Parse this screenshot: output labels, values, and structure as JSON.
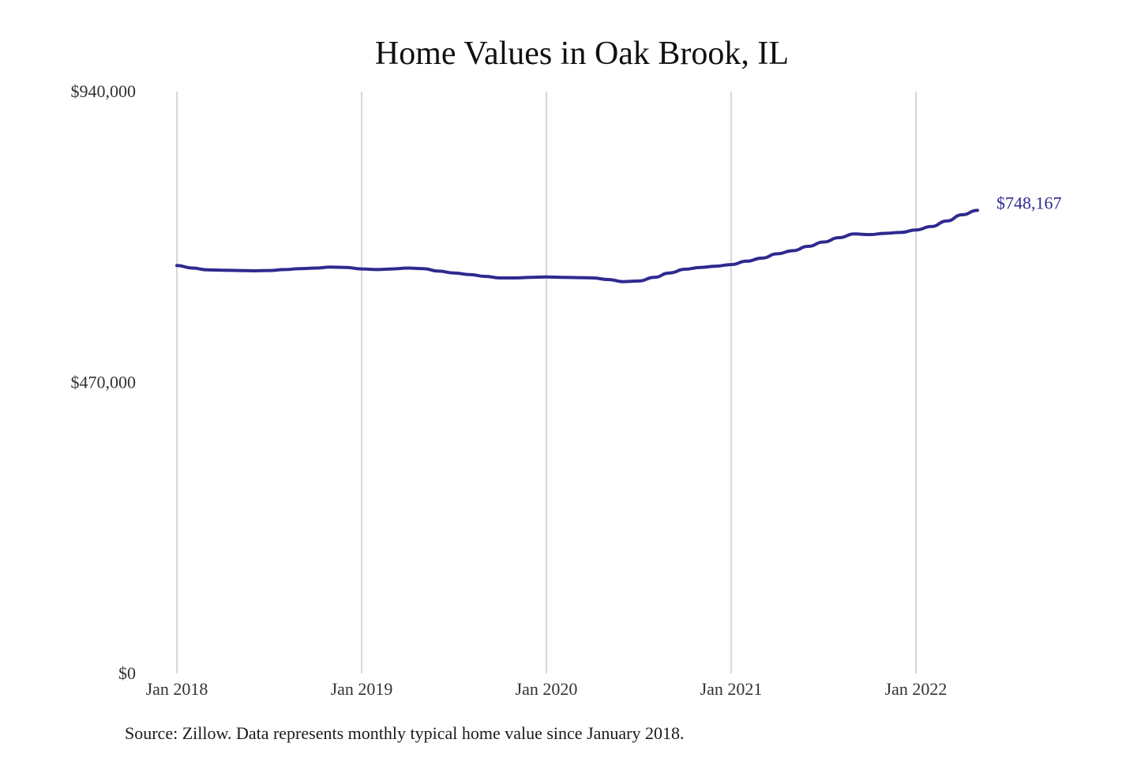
{
  "chart_data": {
    "type": "line",
    "title": "Home Values in Oak Brook, IL",
    "xlabel": "",
    "ylabel": "",
    "ylim": [
      0,
      940000
    ],
    "y_ticks": [
      0,
      470000,
      940000
    ],
    "y_tick_labels": [
      "$0",
      "$470,000",
      "$940,000"
    ],
    "x_start": "2018-01",
    "x_ticks": [
      "2018-01",
      "2019-01",
      "2020-01",
      "2021-01",
      "2022-01"
    ],
    "x_tick_labels": [
      "Jan 2018",
      "Jan 2019",
      "Jan 2020",
      "Jan 2021",
      "Jan 2022"
    ],
    "grid": "vertical",
    "line_color": "#2e2a8f",
    "end_label": "$748,167",
    "series": [
      {
        "x": [
          "2018-01",
          "2018-02",
          "2018-03",
          "2018-04",
          "2018-05",
          "2018-06",
          "2018-07",
          "2018-08",
          "2018-09",
          "2018-10",
          "2018-11",
          "2018-12",
          "2019-01",
          "2019-02",
          "2019-03",
          "2019-04",
          "2019-05",
          "2019-06",
          "2019-07",
          "2019-08",
          "2019-09",
          "2019-10",
          "2019-11",
          "2019-12",
          "2020-01",
          "2020-02",
          "2020-03",
          "2020-04",
          "2020-05",
          "2020-06",
          "2020-07",
          "2020-08",
          "2020-09",
          "2020-10",
          "2020-11",
          "2020-12",
          "2021-01",
          "2021-02",
          "2021-03",
          "2021-04",
          "2021-05",
          "2021-06",
          "2021-07",
          "2021-08",
          "2021-09",
          "2021-10",
          "2021-11",
          "2021-12",
          "2022-01",
          "2022-02",
          "2022-03",
          "2022-04",
          "2022-05"
        ],
        "values": [
          659000,
          655000,
          652000,
          651500,
          651000,
          650500,
          651000,
          652500,
          654000,
          655000,
          656500,
          656000,
          653500,
          652500,
          653500,
          655000,
          654000,
          650000,
          647000,
          644500,
          641500,
          639000,
          639000,
          640000,
          640500,
          640000,
          639500,
          639000,
          636500,
          633000,
          634000,
          640000,
          647000,
          653000,
          656000,
          658000,
          660500,
          666000,
          671000,
          678000,
          683000,
          690000,
          697000,
          704000,
          710000,
          709000,
          711000,
          712500,
          716500,
          722000,
          731000,
          741000,
          748167
        ]
      }
    ]
  },
  "source_note": "Source: Zillow. Data represents monthly typical home value since January 2018."
}
